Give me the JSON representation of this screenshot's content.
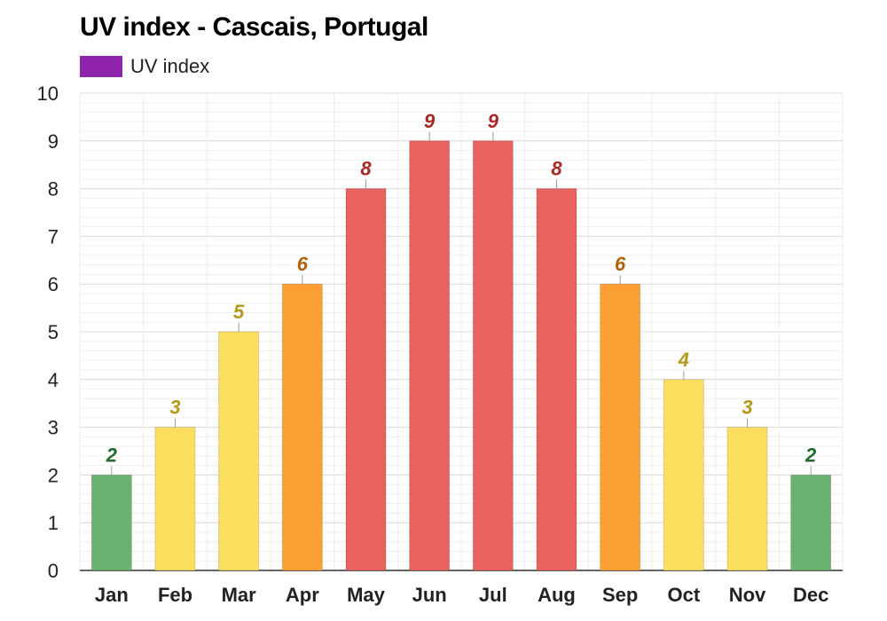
{
  "title": "UV index - Cascais, Portugal",
  "legend": {
    "label": "UV index",
    "color": "#8e24aa"
  },
  "chart_data": {
    "type": "bar",
    "title": "UV index - Cascais, Portugal",
    "xlabel": "",
    "ylabel": "",
    "ylim": [
      0,
      10
    ],
    "yticks": [
      0,
      1,
      2,
      3,
      4,
      5,
      6,
      7,
      8,
      9,
      10
    ],
    "grid": true,
    "legend_position": "top-left",
    "categories": [
      "Jan",
      "Feb",
      "Mar",
      "Apr",
      "May",
      "Jun",
      "Jul",
      "Aug",
      "Sep",
      "Oct",
      "Nov",
      "Dec"
    ],
    "series": [
      {
        "name": "UV index",
        "values": [
          2,
          3,
          5,
          6,
          8,
          9,
          9,
          8,
          6,
          4,
          3,
          2
        ]
      }
    ],
    "color_scale": [
      {
        "max": 2,
        "bar": "#6ab26f",
        "label": "#1e6b2a"
      },
      {
        "max": 5,
        "bar": "#fddf5f",
        "label": "#b39a1c"
      },
      {
        "max": 7,
        "bar": "#fca034",
        "label": "#b0620c"
      },
      {
        "max": 10,
        "bar": "#e9625f",
        "label": "#a52a26"
      }
    ]
  }
}
